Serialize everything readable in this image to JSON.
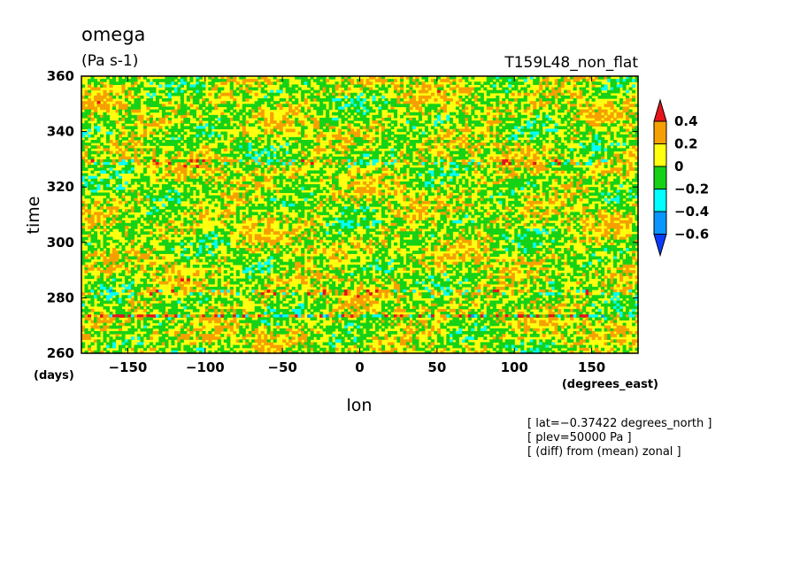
{
  "chart_data": {
    "type": "heatmap",
    "title": "omega",
    "units": "(Pa s-1)",
    "run_label": "T159L48_non_flat",
    "xlabel": "lon",
    "ylabel": "time",
    "x_units": "(degrees_east)",
    "y_units": "(days)",
    "xlim": [
      -180,
      180
    ],
    "ylim": [
      260,
      360
    ],
    "x_ticks": [
      -150,
      -100,
      -50,
      0,
      50,
      100,
      150
    ],
    "x_tick_labels": [
      "−150",
      "−100",
      "−50",
      "0",
      "50",
      "100",
      "150"
    ],
    "y_ticks": [
      260,
      280,
      300,
      320,
      340,
      360
    ],
    "y_tick_labels": [
      "260",
      "280",
      "300",
      "320",
      "340",
      "360"
    ],
    "colorbar": {
      "levels": [
        0.4,
        0.2,
        0,
        -0.2,
        -0.4,
        -0.6
      ],
      "labels": [
        "0.4",
        "0.2",
        "0",
        "−0.2",
        "−0.4",
        "−0.6"
      ],
      "colors": [
        "#e8141c",
        "#f5a000",
        "#ffff10",
        "#16d216",
        "#00ffff",
        "#0a96ff",
        "#0a3cff"
      ]
    },
    "notes": [
      "[ lat=−0.37422 degrees_north ]",
      "[ plev=50000 Pa ]",
      "[ (diff) from (mean) zonal ]"
    ]
  }
}
